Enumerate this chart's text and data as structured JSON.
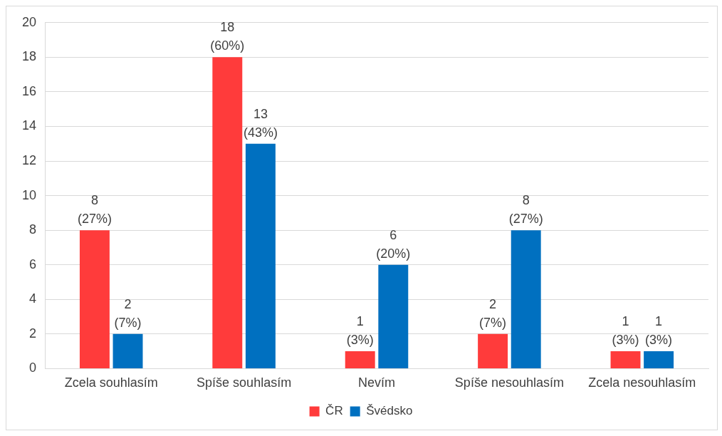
{
  "chart_data": {
    "type": "bar",
    "categories": [
      "Zcela souhlasím",
      "Spíše souhlasím",
      "Nevím",
      "Spíše nesouhlasím",
      "Zcela nesouhlasím"
    ],
    "series": [
      {
        "name": "ČR",
        "color": "#ff3b3b",
        "values": [
          8,
          18,
          1,
          2,
          1
        ],
        "value_labels": [
          "8\n(27%)",
          "18\n(60%)",
          "1\n(3%)",
          "2\n(7%)",
          "1\n(3%)"
        ]
      },
      {
        "name": "Švédsko",
        "color": "#0070c0",
        "values": [
          2,
          13,
          6,
          8,
          1
        ],
        "value_labels": [
          "2\n(7%)",
          "13\n(43%)",
          "6\n(20%)",
          "8\n(27%)",
          "1\n(3%)"
        ]
      }
    ],
    "ylim": [
      0,
      20
    ],
    "yticks": [
      0,
      2,
      4,
      6,
      8,
      10,
      12,
      14,
      16,
      18,
      20
    ],
    "grid": "y",
    "legend": "bottom"
  }
}
